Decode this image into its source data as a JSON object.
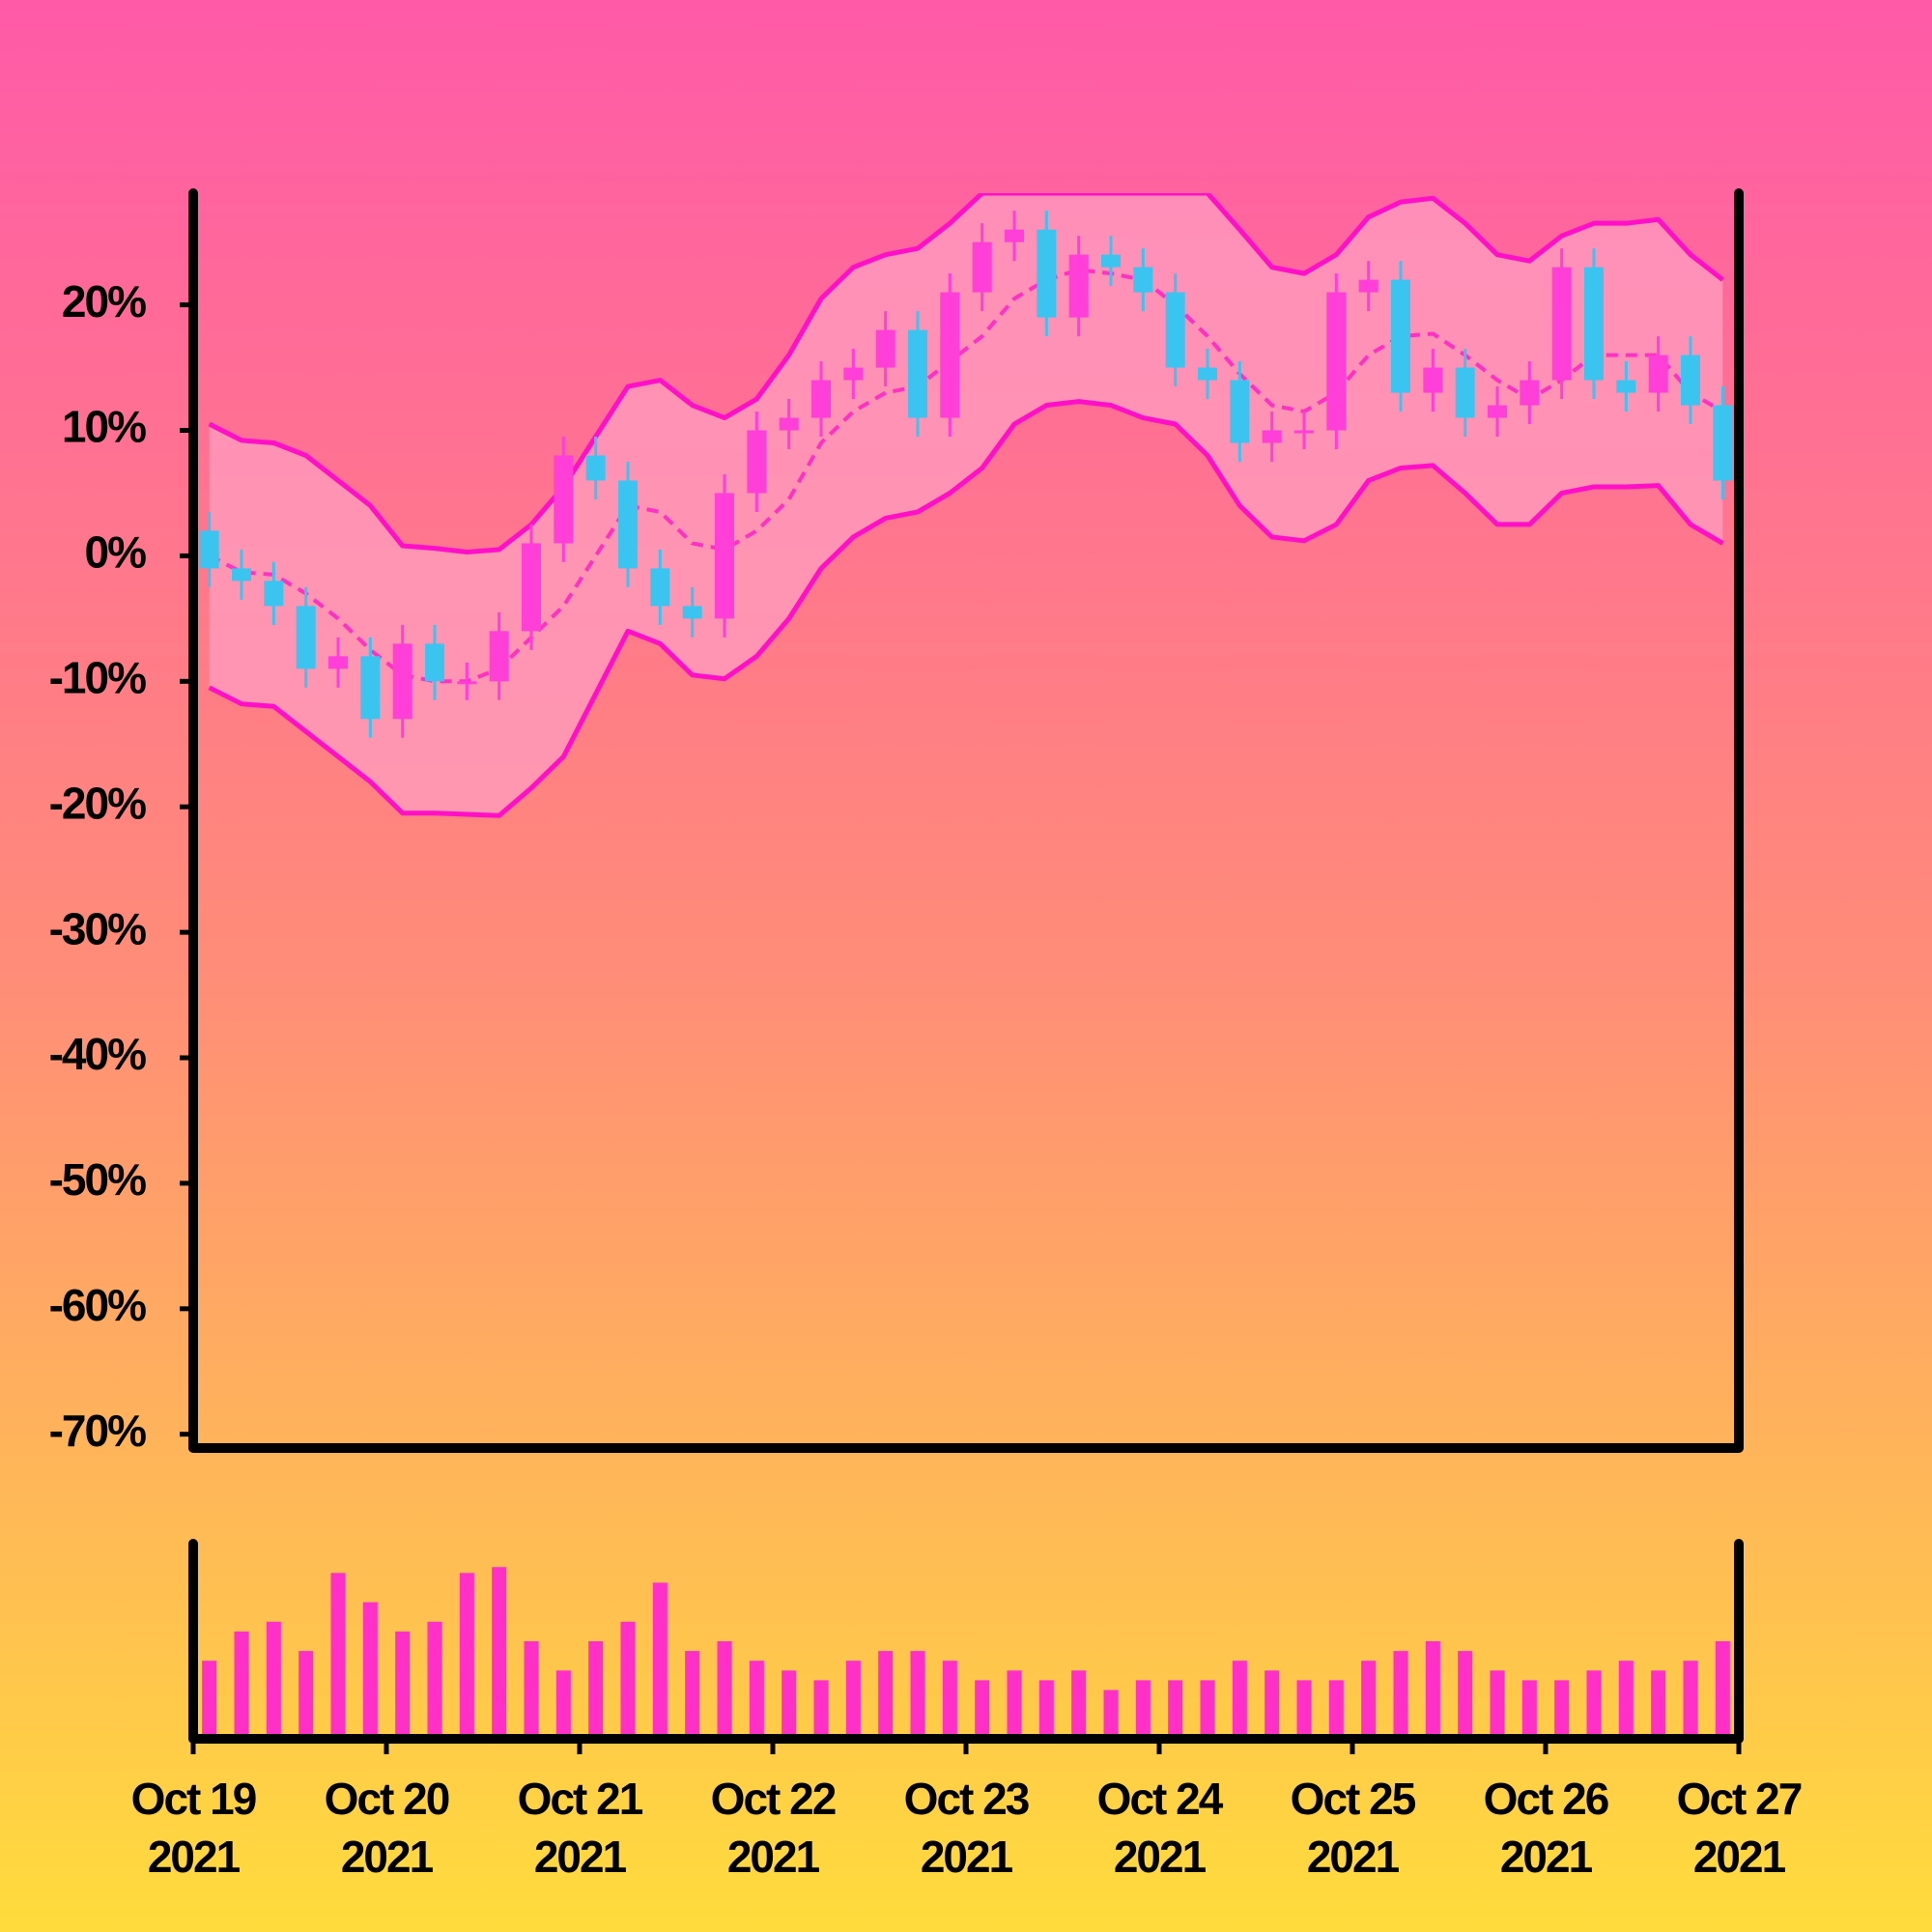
{
  "chart_data": [
    {
      "type": "candlestick",
      "x": [
        2,
        6,
        10,
        14,
        18,
        22,
        26,
        30,
        34,
        38,
        42,
        46,
        50,
        54,
        58,
        62,
        66,
        70,
        74,
        78,
        82,
        86,
        90,
        94,
        98,
        102,
        106,
        110,
        114,
        118,
        122,
        126,
        130,
        134,
        138,
        142,
        146,
        150,
        154,
        158,
        162,
        166,
        170,
        174,
        178,
        182,
        186,
        190
      ],
      "open": [
        2,
        -1,
        -2,
        -4,
        -9,
        -8,
        -13,
        -7,
        -10,
        -10,
        -6,
        1,
        8,
        6,
        -1,
        -4,
        -5,
        5,
        10,
        11,
        14,
        15,
        18,
        11,
        21,
        25,
        26,
        19,
        24,
        23,
        21,
        15,
        14,
        9,
        10,
        10,
        21,
        22,
        13,
        15,
        11,
        12,
        14,
        23,
        14,
        13,
        16,
        12
      ],
      "high": [
        3.5,
        0.5,
        -0.5,
        -2.5,
        -6.5,
        -6.5,
        -5.5,
        -5.5,
        -8.5,
        -4.5,
        2.5,
        9.5,
        9.5,
        7.5,
        0.5,
        -2.5,
        6.5,
        11.5,
        12.5,
        15.5,
        16.5,
        19.5,
        19.5,
        22.5,
        26.5,
        27.5,
        27.5,
        25.5,
        25.5,
        24.5,
        22.5,
        16.5,
        15.5,
        11.5,
        11.5,
        22.5,
        23.5,
        23.5,
        16.5,
        16.5,
        13.5,
        15.5,
        24.5,
        24.5,
        15.5,
        17.5,
        17.5,
        13.5
      ],
      "low": [
        -2.5,
        -3.5,
        -5.5,
        -10.5,
        -10.5,
        -14.5,
        -14.5,
        -11.5,
        -11.5,
        -11.5,
        -7.5,
        -0.5,
        4.5,
        -2.5,
        -5.5,
        -6.5,
        -6.5,
        3.5,
        8.5,
        9.5,
        12.5,
        13.5,
        9.5,
        9.5,
        19.5,
        23.5,
        17.5,
        17.5,
        21.5,
        19.5,
        13.5,
        12.5,
        7.5,
        7.5,
        8.5,
        8.5,
        19.5,
        11.5,
        11.5,
        9.5,
        9.5,
        10.5,
        12.5,
        12.5,
        11.5,
        11.5,
        10.5,
        4.5
      ],
      "close": [
        -1,
        -2,
        -4,
        -9,
        -8,
        -13,
        -7,
        -10,
        -10,
        -6,
        1,
        8,
        6,
        -1,
        -4,
        -5,
        5,
        10,
        11,
        14,
        15,
        18,
        11,
        21,
        25,
        26,
        19,
        24,
        23,
        21,
        15,
        14,
        9,
        10,
        10,
        21,
        22,
        13,
        15,
        11,
        12,
        14,
        23,
        14,
        13,
        16,
        12,
        6
      ],
      "up_color": "#ff3fd8",
      "down_color": "#3cc4f0",
      "bands": {
        "color": "#ff10c8",
        "fill": "#ff9ec0",
        "upper": [
          10.5,
          9.2,
          9,
          8,
          6,
          4,
          0.8,
          0.6,
          0.3,
          0.5,
          2.5,
          5.5,
          9.5,
          13.5,
          14,
          12,
          11,
          12.5,
          16,
          20.5,
          23,
          24,
          24.5,
          26.5,
          28.9,
          28.9,
          28.9,
          28.9,
          28.9,
          28.9,
          28.9,
          28.9,
          26,
          23,
          22.5,
          24,
          27,
          28.2,
          28.5,
          26.5,
          24,
          23.5,
          25.5,
          26.5,
          26.5,
          26.8,
          24,
          22
        ],
        "middle": [
          0,
          -1.3,
          -1.5,
          -3,
          -5,
          -7.5,
          -9.5,
          -10,
          -10,
          -9,
          -6.5,
          -4,
          0,
          4,
          3.5,
          1,
          0.5,
          2,
          4.5,
          9,
          11.5,
          13,
          13.5,
          15.5,
          17.5,
          20.5,
          22,
          22.8,
          22.5,
          22,
          20,
          17.5,
          14.5,
          12,
          11.5,
          13,
          16,
          17.5,
          17.7,
          16,
          14,
          12.5,
          14,
          16,
          16,
          16,
          13,
          11.5
        ],
        "lower": [
          -10.5,
          -11.8,
          -12,
          -14,
          -16,
          -18,
          -20.5,
          -20.5,
          -20.6,
          -20.7,
          -18.5,
          -16,
          -11,
          -6,
          -7,
          -9.5,
          -9.8,
          -8,
          -5,
          -1,
          1.5,
          3,
          3.5,
          5,
          7,
          10.5,
          12,
          12.3,
          12,
          11,
          10.5,
          8,
          4,
          1.5,
          1.2,
          2.5,
          6,
          7,
          7.2,
          5,
          2.5,
          2.5,
          5,
          5.5,
          5.5,
          5.6,
          2.5,
          1
        ]
      },
      "xlim": [
        0,
        192
      ],
      "ylim": [
        -71.1,
        28.9
      ],
      "yticks": [
        {
          "value": 20,
          "label": "20%"
        },
        {
          "value": 10,
          "label": "10%"
        },
        {
          "value": 0,
          "label": "0%"
        },
        {
          "value": -10,
          "label": "-10%"
        },
        {
          "value": -20,
          "label": "-20%"
        },
        {
          "value": -30,
          "label": "-30%"
        },
        {
          "value": -40,
          "label": "-40%"
        },
        {
          "value": -50,
          "label": "-50%"
        },
        {
          "value": -60,
          "label": "-60%"
        },
        {
          "value": -70,
          "label": "-70%"
        }
      ]
    },
    {
      "type": "bar",
      "x": [
        2,
        6,
        10,
        14,
        18,
        22,
        26,
        30,
        34,
        38,
        42,
        46,
        50,
        54,
        58,
        62,
        66,
        70,
        74,
        78,
        82,
        86,
        90,
        94,
        98,
        102,
        106,
        110,
        114,
        118,
        122,
        126,
        130,
        134,
        138,
        142,
        146,
        150,
        154,
        158,
        162,
        166,
        170,
        174,
        178,
        182,
        186,
        190
      ],
      "values": [
        40,
        55,
        60,
        45,
        85,
        70,
        55,
        60,
        85,
        88,
        50,
        35,
        50,
        60,
        80,
        45,
        50,
        40,
        35,
        30,
        40,
        45,
        45,
        40,
        30,
        35,
        30,
        35,
        25,
        30,
        30,
        30,
        40,
        35,
        30,
        30,
        40,
        45,
        50,
        45,
        35,
        30,
        30,
        35,
        40,
        35,
        40,
        50
      ],
      "color": "#ff2fc8",
      "xlim": [
        0,
        192
      ],
      "ylim": [
        0,
        100
      ],
      "xticks": [
        {
          "value": 0,
          "label": "Oct 19 2021"
        },
        {
          "value": 24,
          "label": "Oct 20 2021"
        },
        {
          "value": 48,
          "label": "Oct 21 2021"
        },
        {
          "value": 72,
          "label": "Oct 22 2021"
        },
        {
          "value": 96,
          "label": "Oct 23 2021"
        },
        {
          "value": 120,
          "label": "Oct 24 2021"
        },
        {
          "value": 144,
          "label": "Oct 25 2021"
        },
        {
          "value": 168,
          "label": "Oct 26 2021"
        },
        {
          "value": 192,
          "label": "Oct 27 2021"
        }
      ]
    }
  ]
}
